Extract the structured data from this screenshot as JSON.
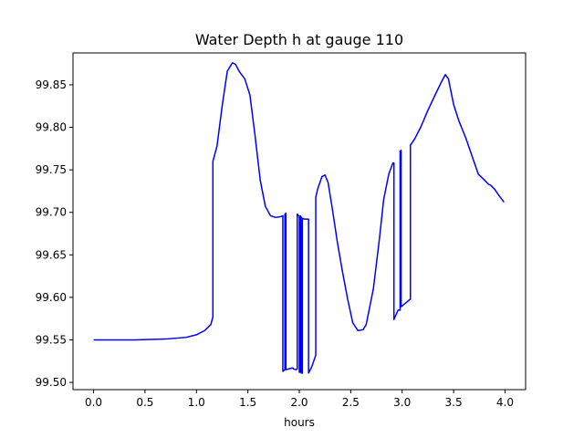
{
  "chart_data": {
    "type": "line",
    "title": "Water Depth h at gauge 110",
    "xlabel": "hours",
    "ylabel": "",
    "xlim": [
      -0.2,
      4.2
    ],
    "ylim": [
      99.4915,
      99.8875
    ],
    "xticks": [
      0.0,
      0.5,
      1.0,
      1.5,
      2.0,
      2.5,
      3.0,
      3.5,
      4.0
    ],
    "xtick_labels": [
      "0.0",
      "0.5",
      "1.0",
      "1.5",
      "2.0",
      "2.5",
      "3.0",
      "3.5",
      "4.0"
    ],
    "yticks": [
      99.5,
      99.55,
      99.6,
      99.65,
      99.7,
      99.75,
      99.8,
      99.85
    ],
    "ytick_labels": [
      "99.50",
      "99.55",
      "99.60",
      "99.65",
      "99.70",
      "99.75",
      "99.80",
      "99.85"
    ],
    "grid": false,
    "series": [
      {
        "color": "#0000ff",
        "x": [
          0.0,
          0.4,
          0.7,
          0.9,
          1.0,
          1.08,
          1.14,
          1.16,
          1.16,
          1.2,
          1.25,
          1.3,
          1.35,
          1.38,
          1.42,
          1.47,
          1.52,
          1.57,
          1.62,
          1.67,
          1.72,
          1.77,
          1.82,
          1.84,
          1.84,
          1.86,
          1.86,
          1.87,
          1.87,
          1.93,
          1.94,
          1.94,
          1.97,
          1.98,
          1.98,
          2.0,
          2.0,
          2.01,
          2.01,
          2.02,
          2.02,
          2.03,
          2.03,
          2.05,
          2.08,
          2.09,
          2.09,
          2.12,
          2.16,
          2.16,
          2.18,
          2.22,
          2.25,
          2.28,
          2.32,
          2.37,
          2.42,
          2.47,
          2.52,
          2.57,
          2.62,
          2.65,
          2.72,
          2.78,
          2.82,
          2.87,
          2.91,
          2.92,
          2.92,
          2.96,
          2.98,
          2.98,
          2.99,
          2.99,
          3.02,
          3.05,
          3.08,
          3.08,
          3.12,
          3.18,
          3.25,
          3.32,
          3.38,
          3.42,
          3.45,
          3.5,
          3.55,
          3.62,
          3.68,
          3.74,
          3.8,
          3.84,
          3.86,
          3.9,
          3.94,
          3.99
        ],
        "y": [
          99.55,
          99.55,
          99.551,
          99.553,
          99.556,
          99.561,
          99.568,
          99.577,
          99.76,
          99.778,
          99.825,
          99.866,
          99.876,
          99.874,
          99.865,
          99.857,
          99.838,
          99.79,
          99.738,
          99.707,
          99.696,
          99.694,
          99.695,
          99.696,
          99.513,
          99.515,
          99.698,
          99.699,
          99.515,
          99.517,
          99.517,
          99.516,
          99.515,
          99.516,
          99.698,
          99.695,
          99.512,
          99.512,
          99.696,
          99.694,
          99.511,
          99.511,
          99.693,
          99.692,
          99.692,
          99.692,
          99.511,
          99.518,
          99.532,
          99.718,
          99.728,
          99.742,
          99.744,
          99.735,
          99.705,
          99.665,
          99.63,
          99.598,
          99.57,
          99.561,
          99.562,
          99.568,
          99.61,
          99.67,
          99.715,
          99.745,
          99.758,
          99.758,
          99.574,
          99.585,
          99.585,
          99.772,
          99.773,
          99.589,
          99.592,
          99.595,
          99.598,
          99.779,
          99.786,
          99.8,
          99.82,
          99.838,
          99.853,
          99.862,
          99.857,
          99.827,
          99.808,
          99.787,
          99.766,
          99.745,
          99.738,
          99.733,
          99.732,
          99.727,
          99.72,
          99.712
        ]
      }
    ]
  }
}
